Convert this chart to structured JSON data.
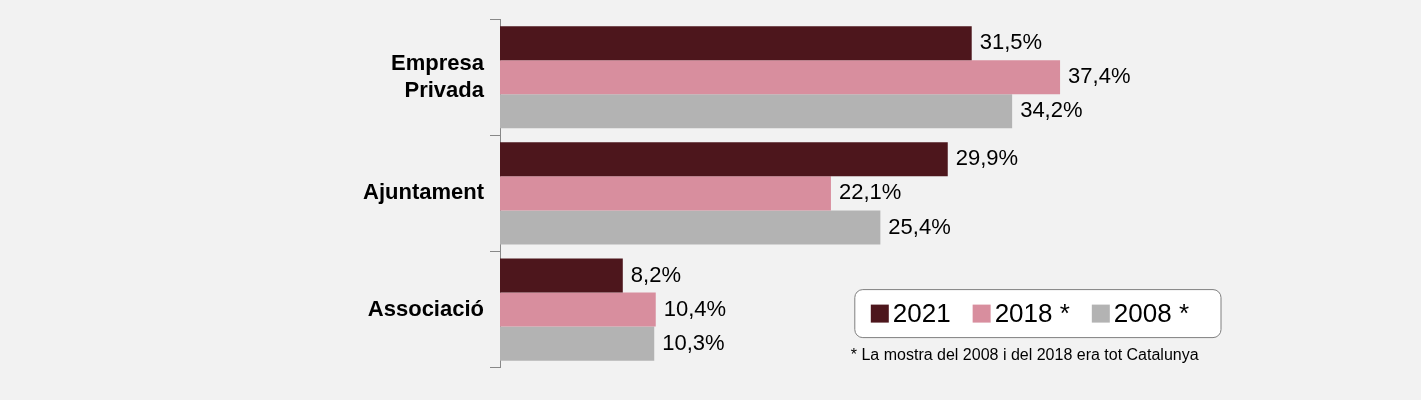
{
  "chart_data": {
    "type": "bar",
    "orientation": "horizontal",
    "categories": [
      "Empresa Privada",
      "Ajuntament",
      "Associació"
    ],
    "series": [
      {
        "name": "2021",
        "color": "#4d161c",
        "values": [
          31.5,
          29.9,
          8.2
        ],
        "value_labels": [
          "31,5%",
          "29,9%",
          "8,2%"
        ]
      },
      {
        "name": "2018 *",
        "color": "#d88e9e",
        "values": [
          37.4,
          22.1,
          10.4
        ],
        "value_labels": [
          "37,4%",
          "22,1%",
          "10,4%"
        ]
      },
      {
        "name": "2008 *",
        "color": "#b3b3b3",
        "values": [
          34.2,
          25.4,
          10.3
        ],
        "value_labels": [
          "34,2%",
          "25,4%",
          "10,3%"
        ]
      }
    ],
    "legend": "bottom right",
    "annotations": [
      "* La mostra del 2008 i del 2018 era tot Catalunya"
    ]
  }
}
